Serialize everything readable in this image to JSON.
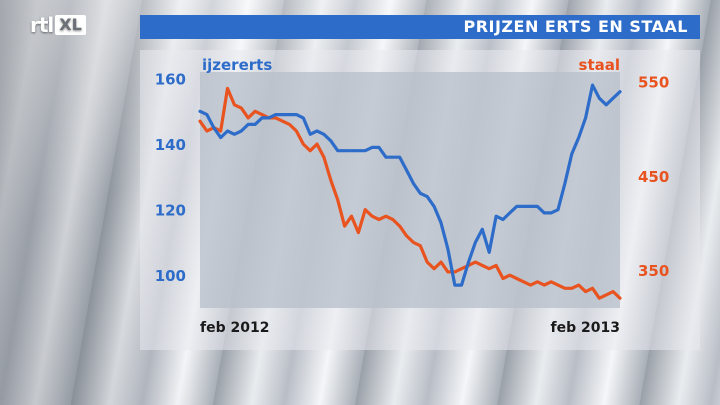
{
  "logo": {
    "text_a": "rtl",
    "text_b": "XL"
  },
  "title": "PRIJZEN ERTS EN STAAL",
  "chart_data": {
    "type": "line",
    "title": "PRIJZEN ERTS EN STAAL",
    "x_start_label": "feb 2012",
    "x_end_label": "feb 2013",
    "left_axis": {
      "ticks": [
        100,
        120,
        140,
        160
      ],
      "range": [
        90,
        162
      ]
    },
    "right_axis": {
      "ticks": [
        350,
        450,
        550
      ],
      "range": [
        310,
        560
      ]
    },
    "colors": {
      "ijzererts": "#2e6cc9",
      "staal": "#e8531f"
    },
    "series": [
      {
        "name": "ijzererts",
        "axis": "left",
        "values": [
          150,
          149,
          145,
          142,
          144,
          143,
          144,
          146,
          146,
          148,
          148,
          149,
          149,
          149,
          149,
          148,
          143,
          144,
          143,
          141,
          138,
          138,
          138,
          138,
          138,
          139,
          139,
          136,
          136,
          136,
          132,
          128,
          125,
          124,
          121,
          116,
          108,
          97,
          97,
          104,
          110,
          114,
          107,
          118,
          117,
          119,
          121,
          121,
          121,
          121,
          119,
          119,
          120,
          128,
          137,
          142,
          148,
          158,
          154,
          152,
          154,
          156
        ]
      },
      {
        "name": "staal",
        "axis": "left",
        "values": [
          147,
          144,
          145,
          144,
          157,
          152,
          151,
          148,
          150,
          149,
          148,
          148,
          147,
          146,
          144,
          140,
          138,
          140,
          136,
          129,
          123,
          115,
          118,
          113,
          120,
          118,
          117,
          118,
          117,
          115,
          112,
          110,
          109,
          104,
          102,
          104,
          101,
          101,
          102,
          103,
          104,
          103,
          102,
          103,
          99,
          100,
          99,
          98,
          97,
          98,
          97,
          98,
          97,
          96,
          96,
          97,
          95,
          96,
          93,
          94,
          95,
          93
        ]
      }
    ]
  },
  "series_labels": {
    "left": "ijzererts",
    "right": "staal"
  }
}
